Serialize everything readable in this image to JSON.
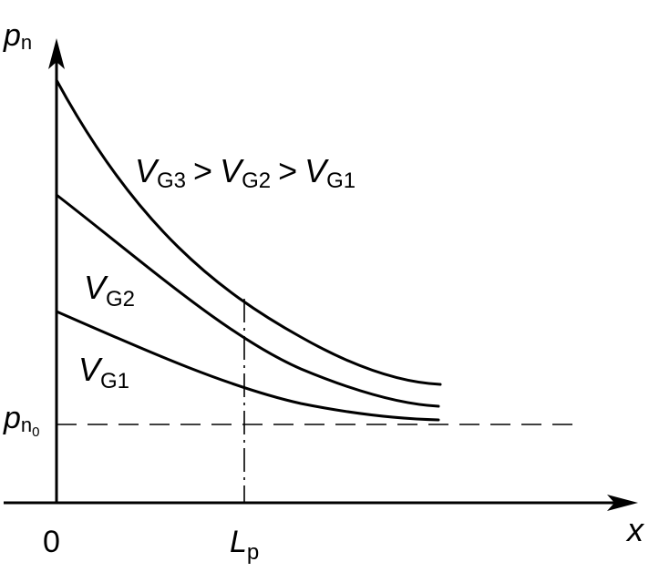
{
  "axes": {
    "y_label": {
      "main": "p",
      "sub": "n"
    },
    "x_label": "x",
    "origin_label": "0",
    "x_marker": {
      "main": "L",
      "sub": "p"
    },
    "y_marker": {
      "main": "p",
      "sub": "n",
      "subsub": "0"
    }
  },
  "annotation": {
    "v": "V",
    "g3": "G3",
    "g2": "G2",
    "g1": "G1",
    "gt": ">"
  },
  "curves": [
    {
      "label_main": "V",
      "label_sub": "G2"
    },
    {
      "label_main": "V",
      "label_sub": "G1"
    }
  ]
}
